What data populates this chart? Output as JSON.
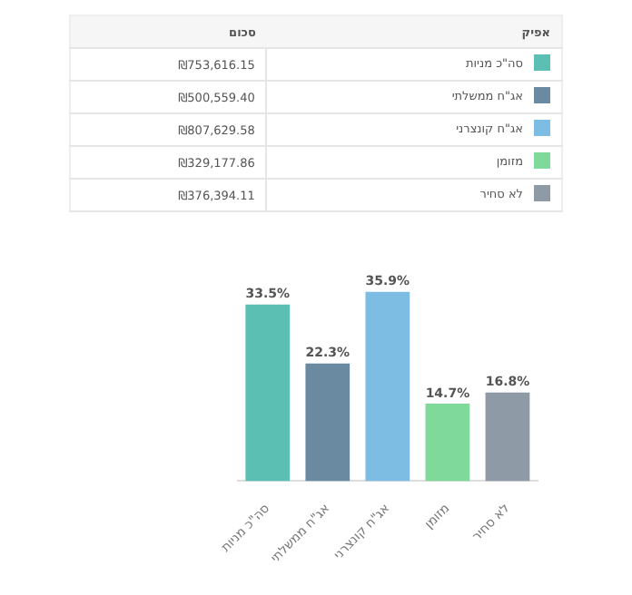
{
  "chart_data": [
    {
      "type": "other",
      "annotations": [
        "אפיק",
        "סכום"
      ],
      "categories": [
        "סה\"כ מניות",
        "אג\"ח ממשלתי",
        "אג\"ח קונצרני",
        "מזומן",
        "לא סחיר"
      ],
      "value_labels": [
        "₪753,616.15",
        "₪500,559.40",
        "₪807,629.58",
        "₪329,177.86",
        "₪376,394.11"
      ],
      "colors": [
        "#5bbfb3",
        "#6a8aa1",
        "#7dbde3",
        "#7fd99a",
        "#8e9ba6"
      ]
    },
    {
      "type": "bar",
      "categories": [
        "סה\"כ מניות",
        "אג\"ח ממשלתי",
        "אג\"ח קונצרני",
        "מזומן",
        "לא סחיר"
      ],
      "values": [
        33.5,
        22.3,
        35.9,
        14.7,
        16.8
      ],
      "value_labels": [
        "33.5%",
        "22.3%",
        "35.9%",
        "14.7%",
        "16.8%"
      ],
      "colors": [
        "#5bbfb3",
        "#6a8aa1",
        "#7dbde3",
        "#7fd99a",
        "#8e9ba6"
      ]
    }
  ]
}
